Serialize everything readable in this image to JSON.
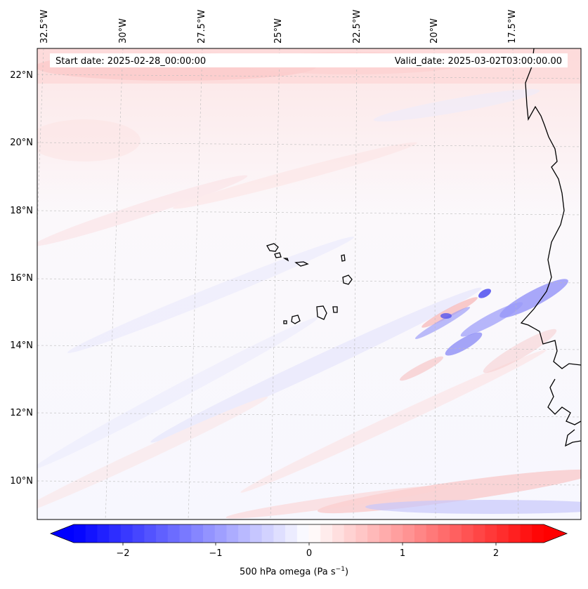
{
  "map": {
    "start_date": "Start date: 2025-02-28_00:00:00",
    "valid_date": "Valid_date: 2025-03-02T03:00:00.00",
    "lon_labels": [
      "32.5°W",
      "30°W",
      "27.5°W",
      "25°W",
      "22.5°W",
      "20°W",
      "17.5°W"
    ],
    "lat_labels": [
      "22°N",
      "20°N",
      "18°N",
      "16°N",
      "14°N",
      "12°N",
      "10°N"
    ],
    "extent": {
      "lon_min": -32.6,
      "lon_max": -15.8,
      "lat_min": 9.0,
      "lat_max": 22.7
    },
    "variable": "500 hPa omega"
  },
  "colorbar": {
    "label_prefix": "500 hPa omega (Pa s",
    "label_exponent": "−1",
    "label_suffix": ")",
    "ticks": [
      "−2",
      "−1",
      "0",
      "1",
      "2"
    ],
    "range": [
      -2.7,
      2.7
    ],
    "colors": {
      "min": "#0000ff",
      "mid": "#ffffff",
      "max": "#ff0000"
    }
  }
}
